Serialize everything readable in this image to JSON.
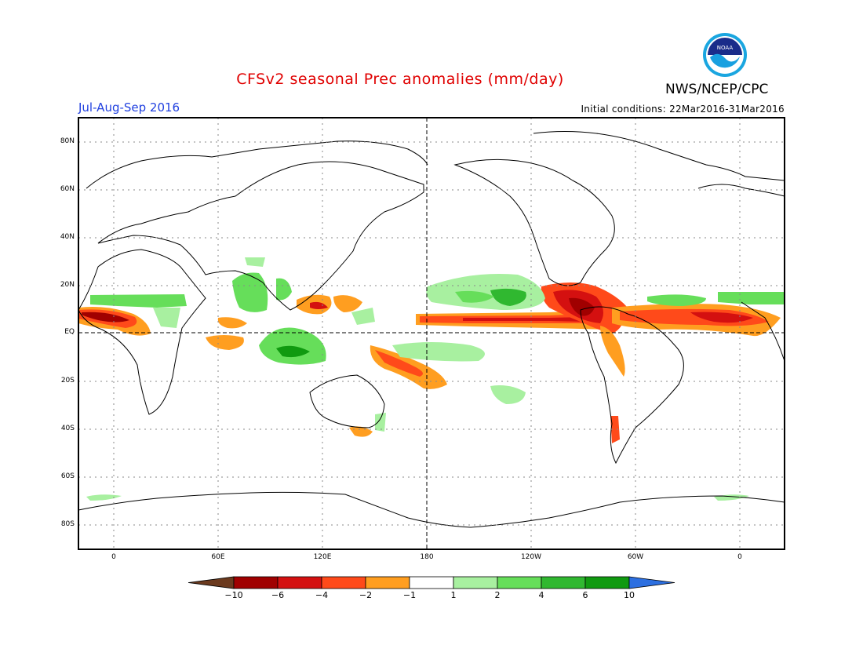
{
  "header": {
    "title": "CFSv2 seasonal Prec anomalies (mm/day)",
    "agency": "NWS/NCEP/CPC",
    "logo_text": "NOAA",
    "season": "Jul-Aug-Sep 2016",
    "initial_conditions": "Initial conditions: 22Mar2016-31Mar2016"
  },
  "map": {
    "projection": "cylindrical equidistant",
    "lat_labels": [
      "80N",
      "60N",
      "40N",
      "20N",
      "EQ",
      "20S",
      "40S",
      "60S",
      "80S"
    ],
    "lon_labels": [
      "0",
      "60E",
      "120E",
      "180",
      "120W",
      "60W",
      "0"
    ]
  },
  "colorbar": {
    "labels": [
      "−10",
      "−6",
      "−4",
      "−2",
      "−1",
      "1",
      "2",
      "4",
      "6",
      "10"
    ],
    "colors": [
      "#6b3a1e",
      "#a00000",
      "#d41010",
      "#ff4a1a",
      "#ff9e20",
      "#ffffff",
      "#a8f0a0",
      "#66de5a",
      "#30b830",
      "#109a10",
      "#2c6fe0"
    ],
    "accent_colors": {
      "title": "#e00000",
      "season": "#2040e0"
    }
  }
}
